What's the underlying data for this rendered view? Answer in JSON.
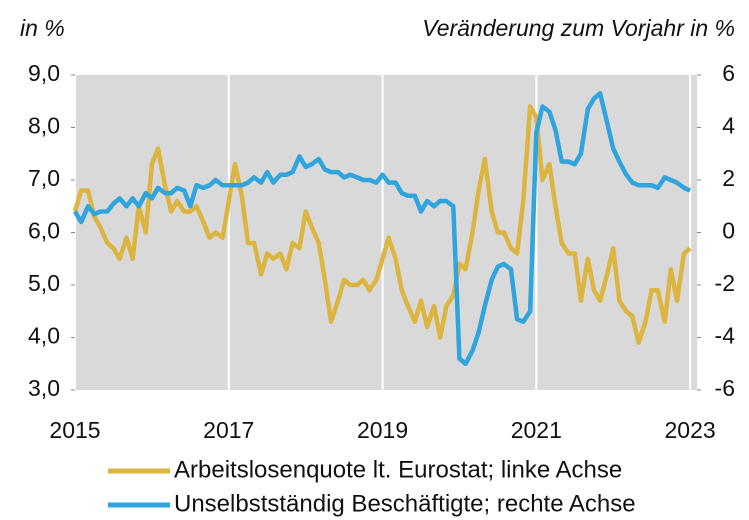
{
  "chart_data": {
    "type": "line",
    "y_label": "in %",
    "y2_label": "Veränderung zum Vorjahr in %",
    "x": [
      2015,
      2015.08,
      2015.17,
      2015.25,
      2015.33,
      2015.42,
      2015.5,
      2015.58,
      2015.67,
      2015.75,
      2015.83,
      2015.92,
      2016,
      2016.08,
      2016.17,
      2016.25,
      2016.33,
      2016.42,
      2016.5,
      2016.58,
      2016.67,
      2016.75,
      2016.83,
      2016.92,
      2017,
      2017.08,
      2017.17,
      2017.25,
      2017.33,
      2017.42,
      2017.5,
      2017.58,
      2017.67,
      2017.75,
      2017.83,
      2017.92,
      2018,
      2018.08,
      2018.17,
      2018.25,
      2018.33,
      2018.42,
      2018.5,
      2018.58,
      2018.67,
      2018.75,
      2018.83,
      2018.92,
      2019,
      2019.08,
      2019.17,
      2019.25,
      2019.33,
      2019.42,
      2019.5,
      2019.58,
      2019.67,
      2019.75,
      2019.83,
      2019.92,
      2020,
      2020.08,
      2020.17,
      2020.25,
      2020.33,
      2020.42,
      2020.5,
      2020.58,
      2020.67,
      2020.75,
      2020.83,
      2020.92,
      2021,
      2021.08,
      2021.17,
      2021.25,
      2021.33,
      2021.42,
      2021.5,
      2021.58,
      2021.67,
      2021.75,
      2021.83,
      2021.92,
      2022,
      2022.08,
      2022.17,
      2022.25,
      2022.33,
      2022.42,
      2022.5,
      2022.58,
      2022.67,
      2022.75,
      2022.83,
      2022.92,
      2023
    ],
    "series": [
      {
        "name": "Arbeitslosenquote lt. Eurostat; linke Achse",
        "color": "#dcb440",
        "axis": "y",
        "values": [
          6.4,
          6.8,
          6.8,
          6.3,
          6.1,
          5.8,
          5.7,
          5.5,
          5.9,
          5.5,
          6.5,
          6.0,
          7.3,
          7.6,
          6.9,
          6.4,
          6.6,
          6.4,
          6.4,
          6.5,
          6.2,
          5.9,
          6.0,
          5.9,
          6.6,
          7.3,
          6.7,
          5.8,
          5.8,
          5.2,
          5.6,
          5.5,
          5.6,
          5.3,
          5.8,
          5.7,
          6.4,
          6.1,
          5.8,
          5.1,
          4.3,
          4.7,
          5.1,
          5.0,
          5.0,
          5.1,
          4.9,
          5.1,
          5.5,
          5.9,
          5.5,
          4.9,
          4.6,
          4.3,
          4.7,
          4.2,
          4.6,
          4.0,
          4.6,
          4.8,
          5.4,
          5.3,
          6.0,
          6.8,
          7.4,
          6.4,
          6.0,
          6.0,
          5.7,
          5.6,
          6.6,
          8.4,
          8.2,
          7.0,
          7.3,
          6.5,
          5.8,
          5.6,
          5.6,
          4.7,
          5.5,
          4.9,
          4.7,
          5.2,
          5.7,
          4.7,
          4.5,
          4.4,
          3.9,
          4.3,
          4.9,
          4.9,
          4.3,
          5.3,
          4.7,
          5.6,
          5.7
        ]
      },
      {
        "name": "Unselbstständig Beschäftigte; rechte Achse",
        "color": "#2fa4dd",
        "axis": "y2",
        "values": [
          0.8,
          0.4,
          1.0,
          0.7,
          0.8,
          0.8,
          1.1,
          1.3,
          1.0,
          1.3,
          1.0,
          1.5,
          1.3,
          1.7,
          1.5,
          1.5,
          1.7,
          1.6,
          1.0,
          1.8,
          1.7,
          1.8,
          2.0,
          1.8,
          1.8,
          1.8,
          1.8,
          1.9,
          2.1,
          1.9,
          2.3,
          1.9,
          2.2,
          2.2,
          2.3,
          2.9,
          2.5,
          2.6,
          2.8,
          2.4,
          2.3,
          2.3,
          2.1,
          2.2,
          2.1,
          2.0,
          2.0,
          1.9,
          2.2,
          1.9,
          1.9,
          1.5,
          1.4,
          1.4,
          0.8,
          1.2,
          1.0,
          1.2,
          1.2,
          1.0,
          -4.8,
          -5.0,
          -4.5,
          -3.8,
          -2.8,
          -1.8,
          -1.3,
          -1.2,
          -1.4,
          -3.3,
          -3.4,
          -3.0,
          3.8,
          4.8,
          4.6,
          3.9,
          2.7,
          2.7,
          2.6,
          3.0,
          4.7,
          5.1,
          5.3,
          4.2,
          3.2,
          2.7,
          2.2,
          1.9,
          1.8,
          1.8,
          1.8,
          1.7,
          2.1,
          2.0,
          1.9,
          1.7,
          1.6
        ]
      }
    ],
    "xlim": [
      2015,
      2023.09
    ],
    "xticks": [
      2015,
      2017,
      2019,
      2021,
      2023
    ],
    "xgrid": true,
    "ylim": [
      3,
      9
    ],
    "yticks": [
      {
        "value": 9,
        "label": "9,0"
      },
      {
        "value": 8,
        "label": "8,0"
      },
      {
        "value": 7,
        "label": "7,0"
      },
      {
        "value": 6,
        "label": "6,0"
      },
      {
        "value": 5,
        "label": "5,0"
      },
      {
        "value": 4,
        "label": "4,0"
      },
      {
        "value": 3,
        "label": "3,0"
      }
    ],
    "y2lim": [
      -6,
      6
    ],
    "y2ticks": [
      6,
      4,
      2,
      0,
      -2,
      -4,
      -6
    ],
    "legend": "bottom"
  }
}
